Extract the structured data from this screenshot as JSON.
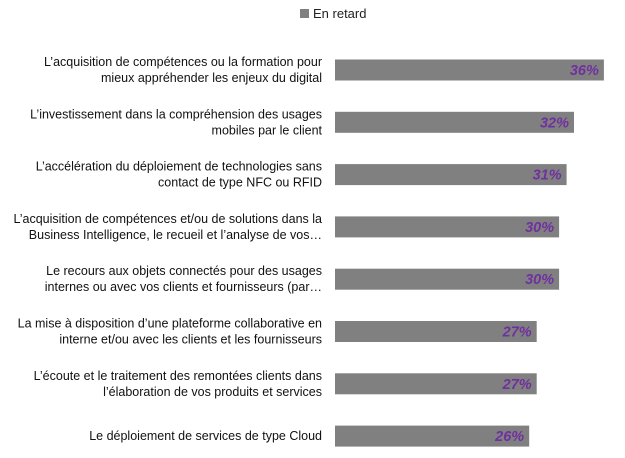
{
  "chart_data": {
    "type": "bar",
    "orientation": "horizontal",
    "legend": {
      "position": "top-right",
      "entries": [
        "En retard"
      ]
    },
    "categories": [
      [
        "L’acquisition de compétences ou la formation pour",
        "mieux appréhender les enjeux du digital"
      ],
      [
        "L’investissement dans la compréhension des usages",
        "mobiles par le client"
      ],
      [
        "L’accélération du déploiement de technologies sans",
        "contact de type NFC ou RFID"
      ],
      [
        "L’acquisition de compétences et/ou de solutions dans la",
        "Business Intelligence, le recueil et l’analyse de vos…"
      ],
      [
        "Le recours aux objets connectés pour des usages",
        "internes ou avec vos clients et fournisseurs (par…"
      ],
      [
        "La mise à disposition d’une plateforme collaborative en",
        "interne et/ou avec les clients et les fournisseurs"
      ],
      [
        "L’écoute et le traitement des remontées clients dans",
        "l’élaboration de vos produits et services"
      ],
      [
        "Le déploiement de services de type Cloud"
      ]
    ],
    "series": [
      {
        "name": "En retard",
        "values": [
          36,
          32,
          31,
          30,
          30,
          27,
          27,
          26
        ],
        "value_labels": [
          "36%",
          "32%",
          "31%",
          "30%",
          "30%",
          "27%",
          "27%",
          "26%"
        ]
      }
    ],
    "xlim": [
      0,
      40
    ],
    "grid": false,
    "colors": {
      "bar": "#808080",
      "value_label": "#7030A0",
      "legend_swatch": "#808080"
    }
  }
}
